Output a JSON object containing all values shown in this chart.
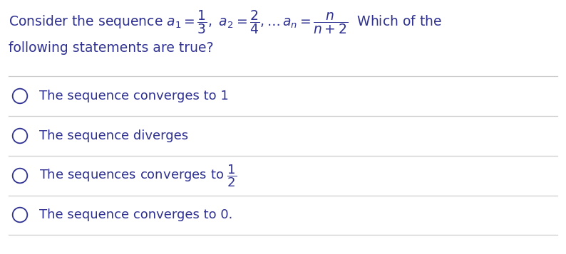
{
  "bg_color": "#ffffff",
  "text_color": "#2e3191",
  "line_color": "#cccccc",
  "options": [
    "The sequence converges to 1",
    "The sequence diverges",
    "The sequences converges to $\\dfrac{1}{2}$",
    "The sequence converges to 0."
  ],
  "font_size_title": 13.5,
  "font_size_options": 13.0,
  "figwidth": 7.94,
  "figheight": 3.57,
  "dpi": 100
}
